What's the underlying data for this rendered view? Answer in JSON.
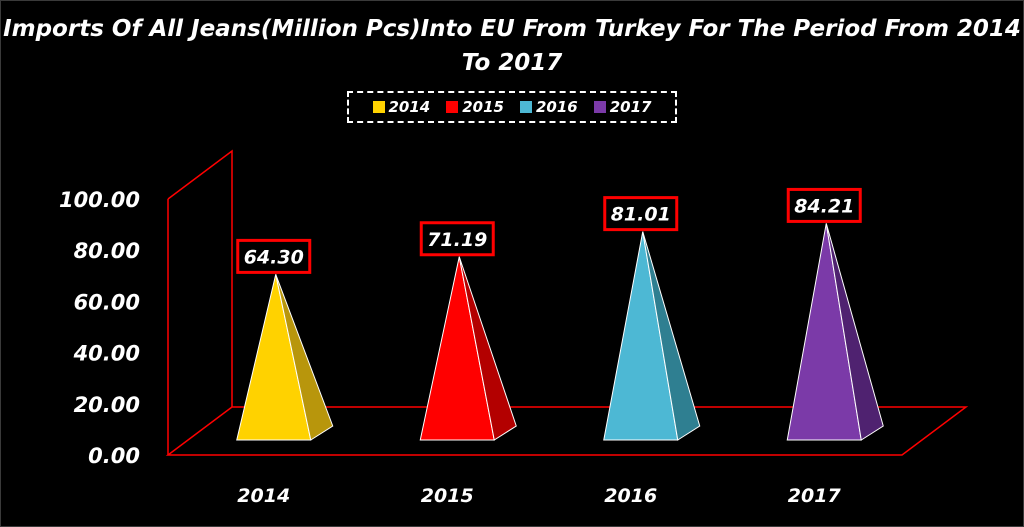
{
  "chart_data": {
    "type": "bar",
    "title": "Imports Of All Jeans(Million Pcs)Into EU From Turkey For The Period From 2014 To 2017",
    "categories": [
      "2014",
      "2015",
      "2016",
      "2017"
    ],
    "values": [
      64.3,
      71.19,
      81.01,
      84.21
    ],
    "data_labels": [
      "64.30",
      "71.19",
      "81.01",
      "84.21"
    ],
    "series_colors": [
      "#ffd200",
      "#ff0000",
      "#4db8d4",
      "#7b3aa8"
    ],
    "series_shades": [
      "#b8960c",
      "#b30000",
      "#2f7f91",
      "#4f2270"
    ],
    "yticks": [
      "0.00",
      "20.00",
      "40.00",
      "60.00",
      "80.00",
      "100.00"
    ],
    "ylim": [
      0,
      100
    ],
    "legend": {
      "placement": "top-center",
      "entries": [
        "2014",
        "2015",
        "2016",
        "2017"
      ]
    },
    "grid": false,
    "bar_shape": "3d-pyramid",
    "frame_color": "#ff0000",
    "label_box_color": "#ff0000"
  }
}
